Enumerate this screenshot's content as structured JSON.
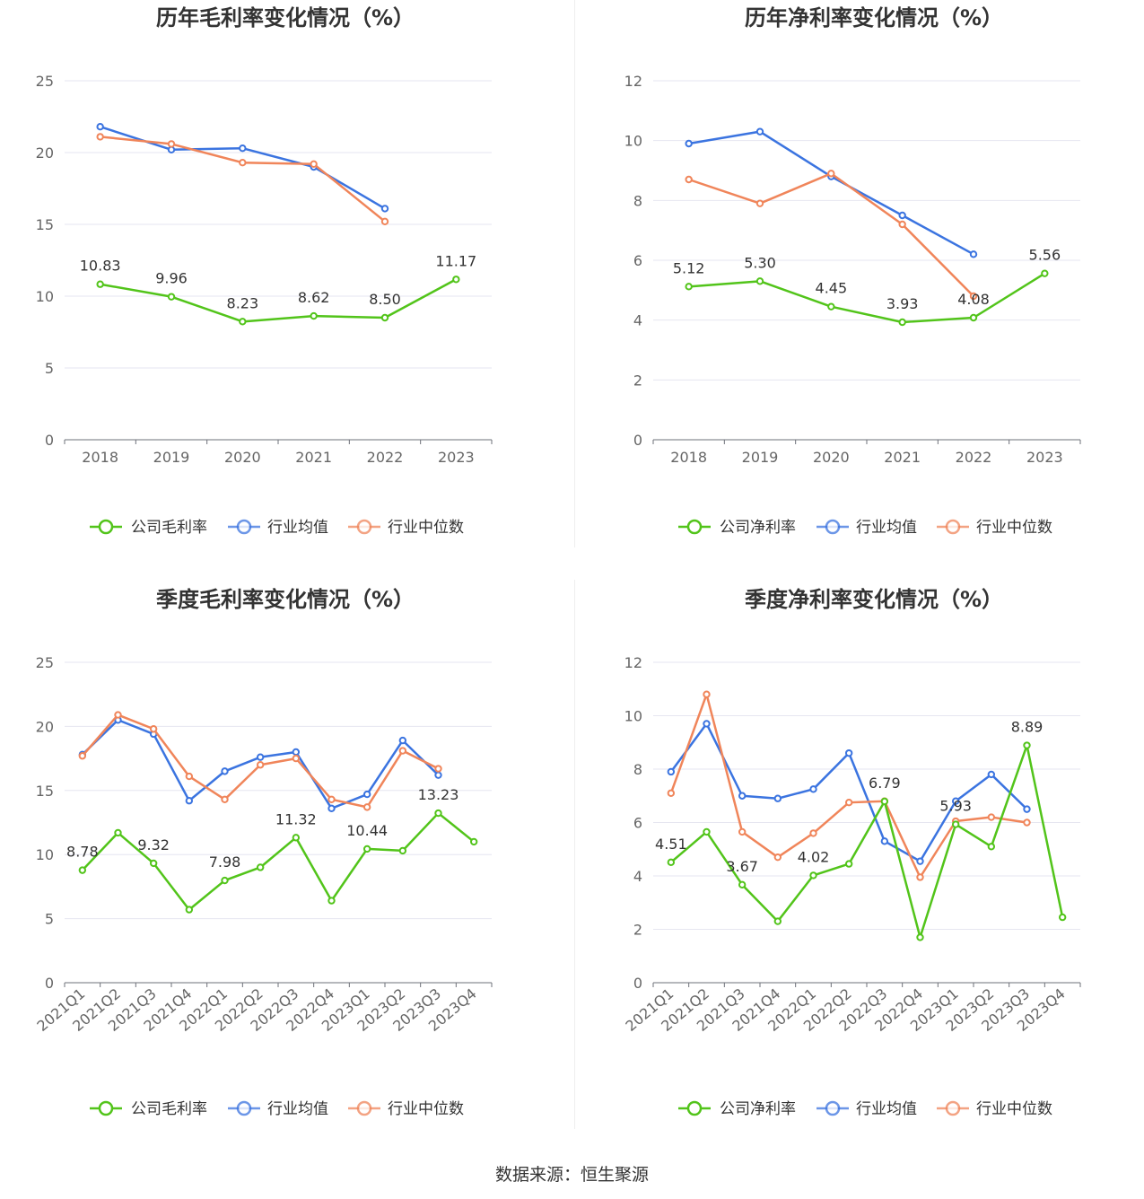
{
  "source": "数据来源：恒生聚源",
  "colors": {
    "company": "#52c41a",
    "avg": "#3b74e0",
    "median": "#f0855a"
  },
  "chart_data": [
    {
      "type": "line",
      "title": "历年毛利率变化情况（%）",
      "categories": [
        "2018",
        "2019",
        "2020",
        "2021",
        "2022",
        "2023"
      ],
      "ylim": [
        0,
        25
      ],
      "yticks": [
        0,
        5,
        10,
        15,
        20,
        25
      ],
      "series": [
        {
          "name": "公司毛利率",
          "values": [
            10.83,
            9.96,
            8.23,
            8.62,
            8.5,
            11.17
          ],
          "labels": [
            "10.83",
            "9.96",
            "8.23",
            "8.62",
            "8.50",
            "11.17"
          ]
        },
        {
          "name": "行业均值",
          "values": [
            21.8,
            20.2,
            20.3,
            19.0,
            16.1,
            null
          ]
        },
        {
          "name": "行业中位数",
          "values": [
            21.1,
            20.6,
            19.3,
            19.2,
            15.2,
            null
          ]
        }
      ]
    },
    {
      "type": "line",
      "title": "历年净利率变化情况（%）",
      "categories": [
        "2018",
        "2019",
        "2020",
        "2021",
        "2022",
        "2023"
      ],
      "ylim": [
        0,
        12
      ],
      "yticks": [
        0,
        2,
        4,
        6,
        8,
        10,
        12
      ],
      "series": [
        {
          "name": "公司净利率",
          "values": [
            5.12,
            5.3,
            4.45,
            3.93,
            4.08,
            5.56
          ],
          "labels": [
            "5.12",
            "5.30",
            "4.45",
            "3.93",
            "4.08",
            "5.56"
          ]
        },
        {
          "name": "行业均值",
          "values": [
            9.9,
            10.3,
            8.8,
            7.5,
            6.2,
            null
          ]
        },
        {
          "name": "行业中位数",
          "values": [
            8.7,
            7.9,
            8.9,
            7.2,
            4.8,
            null
          ]
        }
      ]
    },
    {
      "type": "line",
      "title": "季度毛利率变化情况（%）",
      "categories": [
        "2021Q1",
        "2021Q2",
        "2021Q3",
        "2021Q4",
        "2022Q1",
        "2022Q2",
        "2022Q3",
        "2022Q4",
        "2023Q1",
        "2023Q2",
        "2023Q3",
        "2023Q4"
      ],
      "ylim": [
        0,
        25
      ],
      "yticks": [
        0,
        5,
        10,
        15,
        20,
        25
      ],
      "series": [
        {
          "name": "公司毛利率",
          "values": [
            8.78,
            11.7,
            9.32,
            5.7,
            7.98,
            9.0,
            11.32,
            6.4,
            10.44,
            10.3,
            13.23,
            11.0
          ],
          "labels": [
            "8.78",
            "",
            "9.32",
            "",
            "7.98",
            "",
            "11.32",
            "",
            "10.44",
            "",
            "13.23",
            ""
          ]
        },
        {
          "name": "行业均值",
          "values": [
            17.8,
            20.5,
            19.4,
            14.2,
            16.5,
            17.6,
            18.0,
            13.6,
            14.7,
            18.9,
            16.2,
            null
          ]
        },
        {
          "name": "行业中位数",
          "values": [
            17.7,
            20.9,
            19.8,
            16.1,
            14.3,
            17.0,
            17.5,
            14.3,
            13.7,
            18.1,
            16.7,
            null
          ]
        }
      ]
    },
    {
      "type": "line",
      "title": "季度净利率变化情况（%）",
      "categories": [
        "2021Q1",
        "2021Q2",
        "2021Q3",
        "2021Q4",
        "2022Q1",
        "2022Q2",
        "2022Q3",
        "2022Q4",
        "2023Q1",
        "2023Q2",
        "2023Q3",
        "2023Q4"
      ],
      "ylim": [
        0,
        12
      ],
      "yticks": [
        0,
        2,
        4,
        6,
        8,
        10,
        12
      ],
      "series": [
        {
          "name": "公司净利率",
          "values": [
            4.51,
            5.65,
            3.67,
            2.3,
            4.02,
            4.45,
            6.79,
            1.7,
            5.93,
            5.1,
            8.89,
            2.45
          ],
          "labels": [
            "4.51",
            "",
            "3.67",
            "",
            "4.02",
            "",
            "6.79",
            "",
            "5.93",
            "",
            "8.89",
            ""
          ]
        },
        {
          "name": "行业均值",
          "values": [
            7.9,
            9.7,
            7.0,
            6.9,
            7.25,
            8.6,
            5.3,
            4.55,
            6.8,
            7.8,
            6.5,
            null
          ]
        },
        {
          "name": "行业中位数",
          "values": [
            7.1,
            10.8,
            5.65,
            4.7,
            5.6,
            6.75,
            6.8,
            3.95,
            6.05,
            6.2,
            6.0,
            null
          ]
        }
      ]
    }
  ]
}
